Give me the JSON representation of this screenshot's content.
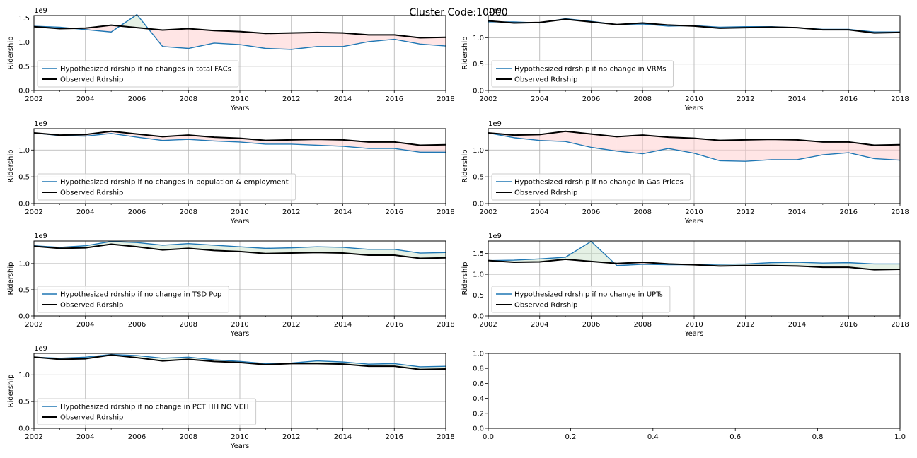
{
  "figure": {
    "title": "Cluster Code:10000"
  },
  "chart_data": [
    {
      "type": "line",
      "x": [
        2002,
        2003,
        2004,
        2005,
        2006,
        2007,
        2008,
        2009,
        2010,
        2011,
        2012,
        2013,
        2014,
        2015,
        2016,
        2017,
        2018
      ],
      "xticks": [
        2002,
        2004,
        2006,
        2008,
        2010,
        2012,
        2014,
        2016,
        2018
      ],
      "xlim": [
        2002,
        2018
      ],
      "ylim": [
        0,
        1.55
      ],
      "yticks": [
        "0.0",
        "0.5",
        "1.0",
        "1.5"
      ],
      "offset_text": "1e9",
      "xlabel": "Years",
      "ylabel": "Ridership",
      "grid": true,
      "legend_position": "lower-left",
      "series": [
        {
          "name": "Hypothesized rdrship if no changes in total FACs",
          "color": "#1f77b4",
          "values": [
            1.33,
            1.31,
            1.26,
            1.21,
            1.57,
            0.91,
            0.87,
            0.98,
            0.95,
            0.87,
            0.85,
            0.91,
            0.91,
            1.01,
            1.06,
            0.96,
            0.92
          ]
        },
        {
          "name": "Observed Rdrship",
          "color": "#000000",
          "values": [
            1.32,
            1.28,
            1.29,
            1.35,
            1.3,
            1.25,
            1.28,
            1.24,
            1.22,
            1.18,
            1.19,
            1.2,
            1.19,
            1.15,
            1.15,
            1.09,
            1.1
          ]
        }
      ]
    },
    {
      "type": "line",
      "x": [
        2002,
        2003,
        2004,
        2005,
        2006,
        2007,
        2008,
        2009,
        2010,
        2011,
        2012,
        2013,
        2014,
        2015,
        2016,
        2017,
        2018
      ],
      "xticks": [
        2002,
        2004,
        2006,
        2008,
        2010,
        2012,
        2014,
        2016,
        2018
      ],
      "xlim": [
        2002,
        2018
      ],
      "ylim": [
        0,
        1.42
      ],
      "yticks": [
        "0.0",
        "0.5",
        "1.0",
        "1.5"
      ],
      "offset_text": "1e9",
      "xlabel": "Years",
      "ylabel": "Ridership",
      "grid": true,
      "legend_position": "lower-left",
      "series": [
        {
          "name": "Hypothesized rdrship if no change in VRMs",
          "color": "#1f77b4",
          "values": [
            1.3,
            1.3,
            1.28,
            1.36,
            1.31,
            1.25,
            1.26,
            1.22,
            1.23,
            1.2,
            1.21,
            1.21,
            1.19,
            1.16,
            1.16,
            1.11,
            1.11
          ]
        },
        {
          "name": "Observed Rdrship",
          "color": "#000000",
          "values": [
            1.32,
            1.28,
            1.29,
            1.35,
            1.3,
            1.25,
            1.28,
            1.24,
            1.22,
            1.18,
            1.19,
            1.2,
            1.19,
            1.15,
            1.15,
            1.09,
            1.1
          ]
        }
      ]
    },
    {
      "type": "line",
      "x": [
        2002,
        2003,
        2004,
        2005,
        2006,
        2007,
        2008,
        2009,
        2010,
        2011,
        2012,
        2013,
        2014,
        2015,
        2016,
        2017,
        2018
      ],
      "xticks": [
        2002,
        2004,
        2006,
        2008,
        2010,
        2012,
        2014,
        2016,
        2018
      ],
      "xlim": [
        2002,
        2018
      ],
      "ylim": [
        0,
        1.4
      ],
      "yticks": [
        "0.0",
        "0.5",
        "1.0"
      ],
      "offset_text": "1e9",
      "xlabel": "Years",
      "ylabel": "Ridership",
      "grid": true,
      "legend_position": "lower-left",
      "series": [
        {
          "name": "Hypothesized rdrship if no changes in population & employment",
          "color": "#1f77b4",
          "values": [
            1.32,
            1.27,
            1.26,
            1.31,
            1.24,
            1.18,
            1.2,
            1.17,
            1.15,
            1.11,
            1.11,
            1.09,
            1.07,
            1.03,
            1.03,
            0.96,
            0.96
          ]
        },
        {
          "name": "Observed Rdrship",
          "color": "#000000",
          "values": [
            1.32,
            1.28,
            1.29,
            1.35,
            1.3,
            1.25,
            1.28,
            1.24,
            1.22,
            1.18,
            1.19,
            1.2,
            1.19,
            1.15,
            1.15,
            1.09,
            1.1
          ]
        }
      ]
    },
    {
      "type": "line",
      "x": [
        2002,
        2003,
        2004,
        2005,
        2006,
        2007,
        2008,
        2009,
        2010,
        2011,
        2012,
        2013,
        2014,
        2015,
        2016,
        2017,
        2018
      ],
      "xticks": [
        2002,
        2004,
        2006,
        2008,
        2010,
        2012,
        2014,
        2016,
        2018
      ],
      "xlim": [
        2002,
        2018
      ],
      "ylim": [
        0,
        1.4
      ],
      "yticks": [
        "0.0",
        "0.5",
        "1.0"
      ],
      "offset_text": "1e9",
      "xlabel": "Years",
      "ylabel": "Ridership",
      "grid": true,
      "legend_position": "lower-left",
      "series": [
        {
          "name": "Hypothesized rdrship if no change in Gas Prices",
          "color": "#1f77b4",
          "values": [
            1.32,
            1.23,
            1.18,
            1.16,
            1.05,
            0.98,
            0.93,
            1.03,
            0.94,
            0.8,
            0.79,
            0.82,
            0.82,
            0.91,
            0.95,
            0.84,
            0.81
          ]
        },
        {
          "name": "Observed Rdrship",
          "color": "#000000",
          "values": [
            1.32,
            1.28,
            1.29,
            1.35,
            1.3,
            1.25,
            1.28,
            1.24,
            1.22,
            1.18,
            1.19,
            1.2,
            1.19,
            1.15,
            1.15,
            1.09,
            1.1
          ]
        }
      ]
    },
    {
      "type": "line",
      "x": [
        2002,
        2003,
        2004,
        2005,
        2006,
        2007,
        2008,
        2009,
        2010,
        2011,
        2012,
        2013,
        2014,
        2015,
        2016,
        2017,
        2018
      ],
      "xticks": [
        2002,
        2004,
        2006,
        2008,
        2010,
        2012,
        2014,
        2016,
        2018
      ],
      "xlim": [
        2002,
        2018
      ],
      "ylim": [
        0,
        1.43
      ],
      "yticks": [
        "0.0",
        "0.5",
        "1.0"
      ],
      "offset_text": "1e9",
      "xlabel": "Years",
      "ylabel": "Ridership",
      "grid": true,
      "legend_position": "lower-left",
      "series": [
        {
          "name": "Hypothesized rdrship if no change in TSD Pop",
          "color": "#1f77b4",
          "values": [
            1.34,
            1.31,
            1.34,
            1.42,
            1.4,
            1.35,
            1.38,
            1.35,
            1.32,
            1.29,
            1.3,
            1.32,
            1.31,
            1.27,
            1.27,
            1.2,
            1.21
          ]
        },
        {
          "name": "Observed Rdrship",
          "color": "#000000",
          "values": [
            1.33,
            1.29,
            1.3,
            1.37,
            1.32,
            1.26,
            1.29,
            1.25,
            1.23,
            1.19,
            1.2,
            1.21,
            1.2,
            1.16,
            1.16,
            1.1,
            1.11
          ]
        }
      ]
    },
    {
      "type": "line",
      "x": [
        2002,
        2003,
        2004,
        2005,
        2006,
        2007,
        2008,
        2009,
        2010,
        2011,
        2012,
        2013,
        2014,
        2015,
        2016,
        2017,
        2018
      ],
      "xticks": [
        2002,
        2004,
        2006,
        2008,
        2010,
        2012,
        2014,
        2016,
        2018
      ],
      "xlim": [
        2002,
        2018
      ],
      "ylim": [
        0,
        1.8
      ],
      "yticks": [
        "0.0",
        "0.5",
        "1.0",
        "1.5"
      ],
      "offset_text": "1e9",
      "xlabel": "Years",
      "ylabel": "Ridership",
      "grid": true,
      "legend_position": "lower-left",
      "series": [
        {
          "name": "Hypothesized rdrship if no change in UPTs",
          "color": "#1f77b4",
          "values": [
            1.33,
            1.34,
            1.37,
            1.41,
            1.79,
            1.21,
            1.24,
            1.23,
            1.23,
            1.24,
            1.25,
            1.28,
            1.29,
            1.27,
            1.28,
            1.25,
            1.25
          ]
        },
        {
          "name": "Observed Rdrship",
          "color": "#000000",
          "values": [
            1.33,
            1.29,
            1.3,
            1.36,
            1.31,
            1.26,
            1.29,
            1.25,
            1.23,
            1.2,
            1.21,
            1.21,
            1.2,
            1.17,
            1.17,
            1.11,
            1.12
          ]
        }
      ]
    },
    {
      "type": "line",
      "x": [
        2002,
        2003,
        2004,
        2005,
        2006,
        2007,
        2008,
        2009,
        2010,
        2011,
        2012,
        2013,
        2014,
        2015,
        2016,
        2017,
        2018
      ],
      "xticks": [
        2002,
        2004,
        2006,
        2008,
        2010,
        2012,
        2014,
        2016,
        2018
      ],
      "xlim": [
        2002,
        2018
      ],
      "ylim": [
        0,
        1.4
      ],
      "yticks": [
        "0.0",
        "0.5",
        "1.0"
      ],
      "offset_text": "1e9",
      "xlabel": "Years",
      "ylabel": "Ridership",
      "grid": true,
      "legend_position": "lower-left",
      "series": [
        {
          "name": "Hypothesized rdrship if no change in PCT HH NO VEH",
          "color": "#1f77b4",
          "values": [
            1.33,
            1.31,
            1.33,
            1.38,
            1.36,
            1.31,
            1.33,
            1.28,
            1.25,
            1.21,
            1.22,
            1.26,
            1.24,
            1.2,
            1.21,
            1.15,
            1.16
          ]
        },
        {
          "name": "Observed Rdrship",
          "color": "#000000",
          "values": [
            1.33,
            1.29,
            1.3,
            1.37,
            1.32,
            1.26,
            1.29,
            1.25,
            1.23,
            1.19,
            1.21,
            1.21,
            1.2,
            1.16,
            1.16,
            1.1,
            1.11
          ]
        }
      ]
    },
    {
      "type": "line",
      "xlim": [
        0,
        1
      ],
      "ylim": [
        0,
        1
      ],
      "xticks": [
        "0.0",
        "0.2",
        "0.4",
        "0.6",
        "0.8",
        "1.0"
      ],
      "yticks": [
        "0.0",
        "0.2",
        "0.4",
        "0.6",
        "0.8",
        "1.0"
      ],
      "grid": false,
      "series": []
    }
  ]
}
